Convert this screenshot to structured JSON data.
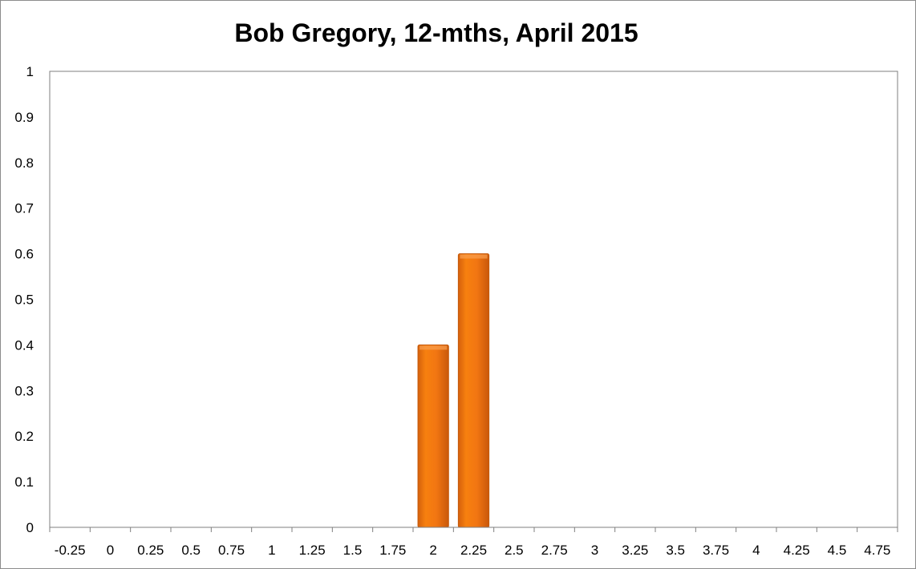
{
  "chart_data": {
    "type": "bar",
    "title": "Bob Gregory, 12-mths, April 2015",
    "xlabel": "",
    "ylabel": "",
    "categories": [
      "-0.25",
      "0",
      "0.25",
      "0.5",
      "0.75",
      "1",
      "1.25",
      "1.5",
      "1.75",
      "2",
      "2.25",
      "2.5",
      "2.75",
      "3",
      "3.25",
      "3.5",
      "3.75",
      "4",
      "4.25",
      "4.5",
      "4.75"
    ],
    "values": [
      0,
      0,
      0,
      0,
      0,
      0,
      0,
      0,
      0,
      0.4,
      0.6,
      0,
      0,
      0,
      0,
      0,
      0,
      0,
      0,
      0,
      0
    ],
    "ylim": [
      0,
      1
    ],
    "yticks": [
      "0",
      "0.1",
      "0.2",
      "0.3",
      "0.4",
      "0.5",
      "0.6",
      "0.7",
      "0.8",
      "0.9",
      "1"
    ],
    "grid": false,
    "legend": "none",
    "bar_color": "#f07614",
    "bar_edge_color": "#c55a0b"
  }
}
